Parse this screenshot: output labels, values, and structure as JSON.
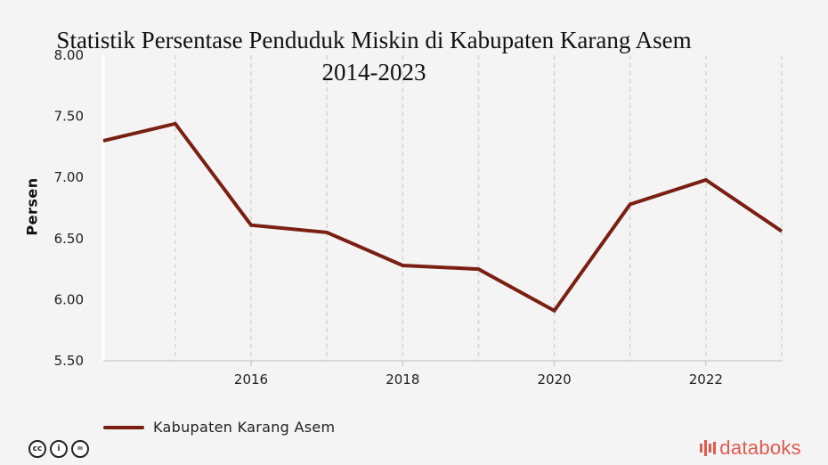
{
  "chart_data": {
    "type": "line",
    "title": "Statistik Persentase Penduduk Miskin di Kabupaten Karang Asem",
    "subtitle": "2014-2023",
    "ylabel": "Persen",
    "xlabel": "",
    "ylim": [
      5.5,
      8.0
    ],
    "yticks": [
      "5.50",
      "6.00",
      "6.50",
      "7.00",
      "7.50",
      "8.00"
    ],
    "xticks": [
      "2016",
      "2018",
      "2020",
      "2022"
    ],
    "x": [
      2014,
      2015,
      2016,
      2017,
      2018,
      2019,
      2020,
      2021,
      2022,
      2023
    ],
    "grid": true,
    "legend_position": "bottom-left",
    "series": [
      {
        "name": "Kabupaten Karang Asem",
        "color": "#7a1f12",
        "values": [
          7.3,
          7.44,
          6.61,
          6.55,
          6.28,
          6.25,
          5.91,
          6.78,
          6.98,
          6.56
        ]
      }
    ]
  },
  "footer": {
    "license_icons": [
      "cc-icon",
      "by-icon",
      "nd-icon"
    ],
    "license_glyphs": [
      "cc",
      "i",
      "="
    ],
    "brand": "databoks"
  }
}
